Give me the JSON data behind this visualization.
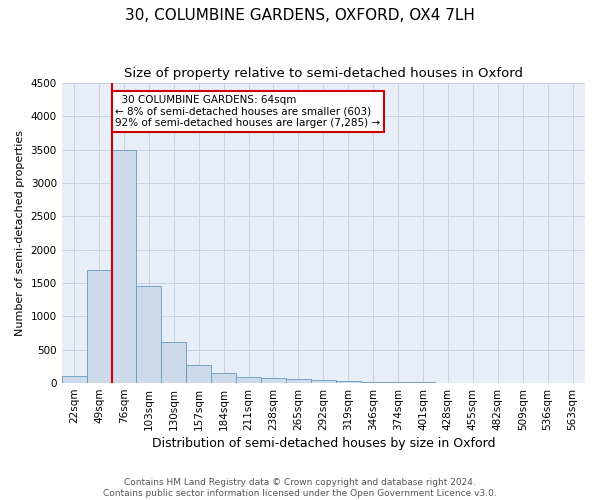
{
  "title": "30, COLUMBINE GARDENS, OXFORD, OX4 7LH",
  "subtitle": "Size of property relative to semi-detached houses in Oxford",
  "xlabel": "Distribution of semi-detached houses by size in Oxford",
  "ylabel": "Number of semi-detached properties",
  "footer_line1": "Contains HM Land Registry data © Crown copyright and database right 2024.",
  "footer_line2": "Contains public sector information licensed under the Open Government Licence v3.0.",
  "bin_labels": [
    "22sqm",
    "49sqm",
    "76sqm",
    "103sqm",
    "130sqm",
    "157sqm",
    "184sqm",
    "211sqm",
    "238sqm",
    "265sqm",
    "292sqm",
    "319sqm",
    "346sqm",
    "374sqm",
    "401sqm",
    "428sqm",
    "455sqm",
    "482sqm",
    "509sqm",
    "536sqm",
    "563sqm"
  ],
  "bar_values": [
    110,
    1700,
    3500,
    1450,
    620,
    265,
    145,
    90,
    75,
    55,
    45,
    30,
    20,
    15,
    10,
    8,
    5,
    4,
    3,
    2,
    2
  ],
  "bar_color": "#ccdaea",
  "bar_edge_color": "#6699bb",
  "ylim": [
    0,
    4500
  ],
  "yticks": [
    0,
    500,
    1000,
    1500,
    2000,
    2500,
    3000,
    3500,
    4000,
    4500
  ],
  "red_line_bin_index": 2,
  "property_label": "30 COLUMBINE GARDENS: 64sqm",
  "pct_smaller": 8,
  "n_smaller": 603,
  "pct_larger": 92,
  "n_larger": 7285,
  "annotation_box_color": "#ffffff",
  "annotation_box_edge": "#cc0000",
  "red_line_color": "#cc0000",
  "grid_color": "#c8d4e4",
  "background_color": "#e8eef8",
  "title_fontsize": 11,
  "subtitle_fontsize": 9.5,
  "ylabel_fontsize": 8,
  "xlabel_fontsize": 9,
  "tick_fontsize": 7.5,
  "annotation_fontsize": 7.5,
  "footer_fontsize": 6.5
}
